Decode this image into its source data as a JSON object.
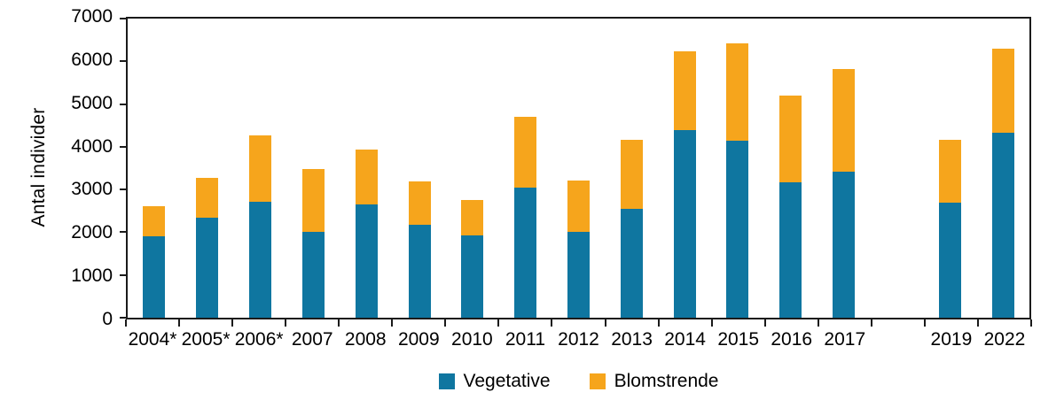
{
  "chart_data": {
    "type": "bar",
    "stacked": true,
    "title": "",
    "xlabel": "",
    "ylabel": "Antal individer",
    "ylim": [
      0,
      7000
    ],
    "ytick_step": 1000,
    "grid": false,
    "legend_position": "bottom",
    "axis_color": "#1a1a1a",
    "categories": [
      "2004*",
      "2005*",
      "2006*",
      "2007",
      "2008",
      "2009",
      "2010",
      "2011",
      "2012",
      "2013",
      "2014",
      "2015",
      "2016",
      "2017",
      "",
      "2019",
      "2022"
    ],
    "series": [
      {
        "name": "Vegetative",
        "color": "#0F76A0",
        "values": [
          1900,
          2350,
          2720,
          2010,
          2660,
          2170,
          1920,
          3050,
          2010,
          2540,
          4400,
          4150,
          3160,
          3410,
          null,
          2700,
          4330
        ]
      },
      {
        "name": "Blomstrende",
        "color": "#F6A51C",
        "values": [
          700,
          930,
          1550,
          1470,
          1270,
          1030,
          830,
          1660,
          1200,
          1630,
          1830,
          2280,
          2030,
          2410,
          null,
          1460,
          1970
        ]
      }
    ]
  }
}
